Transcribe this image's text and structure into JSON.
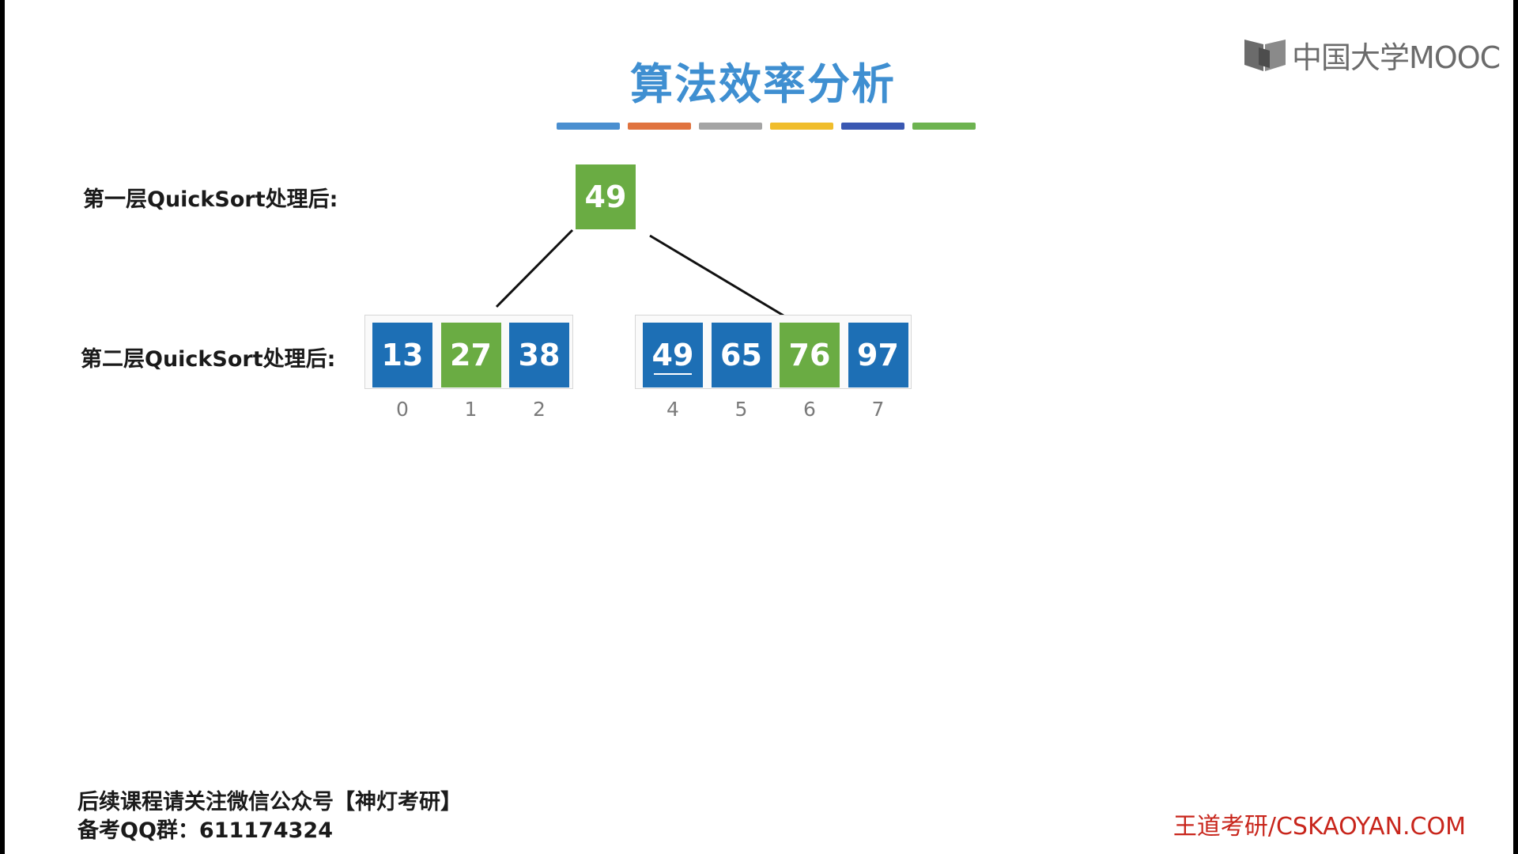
{
  "title": "算法效率分析",
  "logo": {
    "icon": "book-icon",
    "text": "中国大学MOOC"
  },
  "color_bar": [
    "#4a8fd0",
    "#e0733f",
    "#a4a4a4",
    "#f0bd2c",
    "#3a58b2",
    "#6db350"
  ],
  "colors": {
    "blue": "#1d6fb5",
    "green": "#6aac43"
  },
  "level1": {
    "label": "第一层QuickSort处理后:",
    "pivot": {
      "value": "49",
      "color": "green"
    }
  },
  "level2": {
    "label": "第二层QuickSort处理后:",
    "left": [
      {
        "value": "13",
        "index": "0",
        "color": "blue"
      },
      {
        "value": "27",
        "index": "1",
        "color": "green"
      },
      {
        "value": "38",
        "index": "2",
        "color": "blue"
      }
    ],
    "right": [
      {
        "value": "49",
        "index": "4",
        "color": "blue",
        "underline": true
      },
      {
        "value": "65",
        "index": "5",
        "color": "blue"
      },
      {
        "value": "76",
        "index": "6",
        "color": "green"
      },
      {
        "value": "97",
        "index": "7",
        "color": "blue"
      }
    ]
  },
  "footer": {
    "line1": "后续课程请关注微信公众号【神灯考研】",
    "line2": "备考QQ群：611174324",
    "brand": "王道考研/CSKAOYAN.COM"
  }
}
